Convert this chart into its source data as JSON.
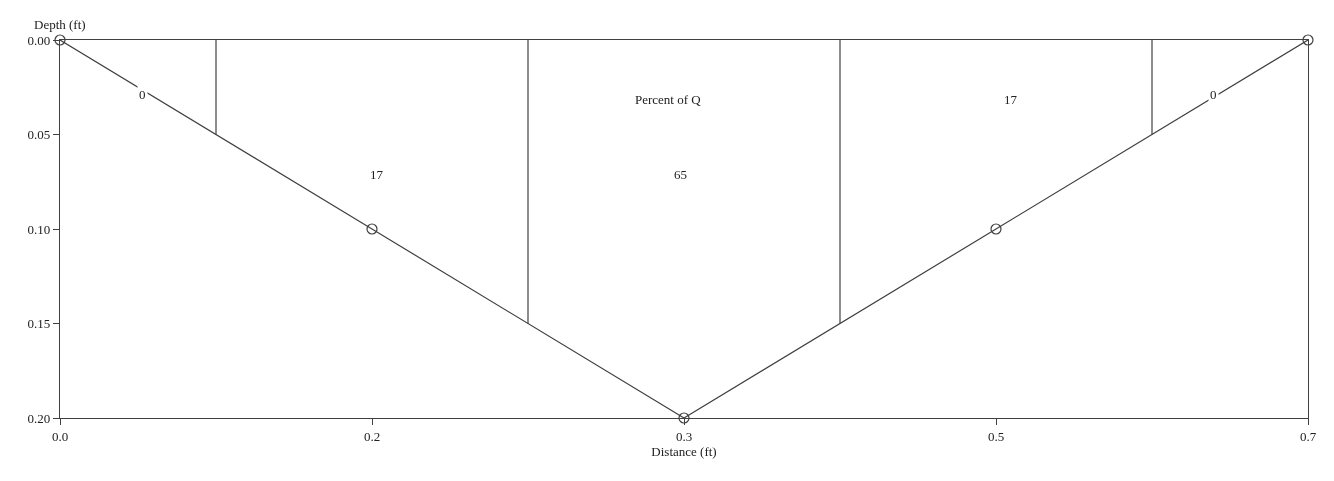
{
  "chart_data": {
    "type": "line",
    "xlabel": "Distance (ft)",
    "ylabel": "Depth (ft)",
    "xlim": [
      0,
      0.7
    ],
    "ylim": [
      0.2,
      0
    ],
    "xticks": [
      {
        "value": 0,
        "label": "0.0"
      },
      {
        "value": 0.175,
        "label": "0.2"
      },
      {
        "value": 0.35,
        "label": "0.3"
      },
      {
        "value": 0.525,
        "label": "0.5"
      },
      {
        "value": 0.7,
        "label": "0.7"
      }
    ],
    "yticks": [
      {
        "value": 0,
        "label": "0.00"
      },
      {
        "value": 0.05,
        "label": "0.05"
      },
      {
        "value": 0.1,
        "label": "0.10"
      },
      {
        "value": 0.15,
        "label": "0.15"
      },
      {
        "value": 0.2,
        "label": "0.20"
      }
    ],
    "series": [
      {
        "color": "#404040",
        "x": [
          0,
          0.175,
          0.35,
          0.525,
          0.7
        ],
        "values": [
          0,
          0.1,
          0.2,
          0.1,
          0
        ],
        "marker": "circle"
      },
      {
        "color": "#404040",
        "x": [
          0.0875,
          0.0875
        ],
        "values": [
          0,
          0.05
        ],
        "marker": "none"
      },
      {
        "color": "#404040",
        "x": [
          0.2625,
          0.2625
        ],
        "values": [
          0,
          0.15
        ],
        "marker": "none"
      },
      {
        "color": "#404040",
        "x": [
          0.4375,
          0.4375
        ],
        "values": [
          0,
          0.15
        ],
        "marker": "none"
      },
      {
        "color": "#404040",
        "x": [
          0.6125,
          0.6125
        ],
        "values": [
          0,
          0.05
        ],
        "marker": "none"
      }
    ],
    "annotations": [
      "0",
      "17",
      "Percent of Q",
      "65",
      "17",
      "0"
    ]
  }
}
